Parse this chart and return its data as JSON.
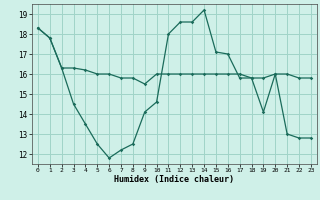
{
  "title": "",
  "xlabel": "Humidex (Indice chaleur)",
  "bg_color": "#cff0e8",
  "grid_color": "#a0d4c8",
  "line_color": "#1a6b5a",
  "line1_x": [
    0,
    1,
    2,
    3,
    4,
    5,
    6,
    7,
    8,
    9,
    10,
    11,
    12,
    13,
    14,
    15,
    16,
    17,
    18,
    19,
    20,
    21,
    22,
    23
  ],
  "line1_y": [
    18.3,
    17.8,
    16.3,
    16.3,
    16.2,
    16.0,
    16.0,
    15.8,
    15.8,
    15.5,
    16.0,
    16.0,
    16.0,
    16.0,
    16.0,
    16.0,
    16.0,
    16.0,
    15.8,
    15.8,
    16.0,
    16.0,
    15.8,
    15.8
  ],
  "line2_x": [
    0,
    1,
    2,
    3,
    4,
    5,
    6,
    7,
    8,
    9,
    10,
    11,
    12,
    13,
    14,
    15,
    16,
    17,
    18,
    19,
    20,
    21,
    22,
    23
  ],
  "line2_y": [
    18.3,
    17.8,
    16.3,
    14.5,
    13.5,
    12.5,
    11.8,
    12.2,
    12.5,
    14.1,
    14.6,
    18.0,
    18.6,
    18.6,
    19.2,
    17.1,
    17.0,
    15.8,
    15.8,
    14.1,
    16.0,
    13.0,
    12.8,
    12.8
  ],
  "ylim": [
    11.5,
    19.5
  ],
  "xlim": [
    -0.5,
    23.5
  ],
  "yticks": [
    12,
    13,
    14,
    15,
    16,
    17,
    18,
    19
  ],
  "xticks": [
    0,
    1,
    2,
    3,
    4,
    5,
    6,
    7,
    8,
    9,
    10,
    11,
    12,
    13,
    14,
    15,
    16,
    17,
    18,
    19,
    20,
    21,
    22,
    23
  ]
}
